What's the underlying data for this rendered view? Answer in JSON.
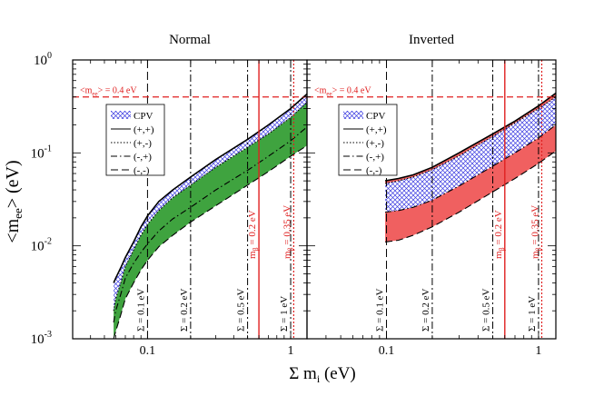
{
  "chart_data": [
    {
      "type": "line",
      "title": "Normal",
      "xlabel": "Σ m_i (eV)",
      "ylabel": "<m_ee> (eV)",
      "xscale": "log",
      "yscale": "log",
      "xlim": [
        0.03,
        1.3
      ],
      "ylim": [
        0.001,
        1
      ],
      "x_ticks": [
        "0.1",
        "1"
      ],
      "y_ticks": [
        "10^-3",
        "10^-2",
        "10^-1",
        "10^0"
      ],
      "legend": [
        "CPV",
        "(+,+)",
        "(+,-)",
        "(-,+)",
        "(-,-)"
      ],
      "legend_position": "upper-left",
      "hline": {
        "label": "<m_ee> = 0.4 eV",
        "y": 0.4
      },
      "vlines": [
        {
          "label": "Σ = 0.1 eV",
          "x": 0.1,
          "style": "dash"
        },
        {
          "label": "Σ = 0.2 eV",
          "x": 0.2,
          "style": "dashdot"
        },
        {
          "label": "Σ = 0.5 eV",
          "x": 0.5,
          "style": "dashdot"
        },
        {
          "label": "Σ = 1 eV",
          "x": 1.0,
          "style": "dashdot"
        }
      ],
      "mbeta_lines": [
        {
          "label": "m_β = 0.2 eV",
          "x": 0.6,
          "style": "solid"
        },
        {
          "label": "m_β = 0.35 eV",
          "x": 1.05,
          "style": "dotted"
        }
      ],
      "x": [
        0.058,
        0.06,
        0.065,
        0.07,
        0.08,
        0.09,
        0.1,
        0.12,
        0.15,
        0.2,
        0.3,
        0.5,
        0.7,
        1.0,
        1.3
      ],
      "series": [
        {
          "name": "(+,+)",
          "values": [
            0.004,
            0.0045,
            0.0058,
            0.0075,
            0.011,
            0.016,
            0.021,
            0.03,
            0.04,
            0.055,
            0.085,
            0.14,
            0.2,
            0.3,
            0.43
          ]
        },
        {
          "name": "(+,-)",
          "values": [
            0.002,
            0.0027,
            0.004,
            0.006,
            0.009,
            0.013,
            0.017,
            0.024,
            0.033,
            0.045,
            0.07,
            0.115,
            0.16,
            0.24,
            0.35
          ]
        },
        {
          "name": "(-,+)",
          "values": [
            0.0015,
            0.002,
            0.003,
            0.0045,
            0.0065,
            0.0085,
            0.0105,
            0.0145,
            0.0195,
            0.026,
            0.04,
            0.065,
            0.092,
            0.135,
            0.19
          ]
        },
        {
          "name": "(-,-)",
          "values": [
            0.001,
            0.0012,
            0.0018,
            0.0027,
            0.004,
            0.0055,
            0.007,
            0.0098,
            0.013,
            0.018,
            0.027,
            0.045,
            0.063,
            0.092,
            0.12
          ]
        }
      ],
      "cpv_band": {
        "lower": "(+,-)",
        "upper": "(+,+)"
      },
      "colored_band": {
        "lower": "(-,-)",
        "upper": "(+,-)",
        "color": "#3fa33f"
      }
    },
    {
      "type": "line",
      "title": "Inverted",
      "xlabel": "Σ m_i (eV)",
      "ylabel": "<m_ee> (eV)",
      "xscale": "log",
      "yscale": "log",
      "xlim": [
        0.03,
        1.3
      ],
      "ylim": [
        0.001,
        1
      ],
      "x_ticks": [
        "0.1",
        "1"
      ],
      "legend": [
        "CPV",
        "(+,+)",
        "(+,-)",
        "(-,+)",
        "(-,-)"
      ],
      "legend_position": "upper-left",
      "hline": {
        "label": "<m_ee> = 0.4 eV",
        "y": 0.4
      },
      "vlines": [
        {
          "label": "Σ = 0.1 eV",
          "x": 0.1,
          "style": "dash"
        },
        {
          "label": "Σ = 0.2 eV",
          "x": 0.2,
          "style": "dashdot"
        },
        {
          "label": "Σ = 0.5 eV",
          "x": 0.5,
          "style": "dashdot"
        },
        {
          "label": "Σ = 1 eV",
          "x": 1.0,
          "style": "dashdot"
        }
      ],
      "mbeta_lines": [
        {
          "label": "m_β = 0.2 eV",
          "x": 0.6,
          "style": "solid"
        },
        {
          "label": "m_β = 0.35 eV",
          "x": 1.05,
          "style": "dotted"
        }
      ],
      "x": [
        0.098,
        0.12,
        0.15,
        0.2,
        0.3,
        0.5,
        0.7,
        1.0,
        1.3
      ],
      "series": [
        {
          "name": "(+,+)",
          "values": [
            0.05,
            0.053,
            0.058,
            0.07,
            0.1,
            0.16,
            0.22,
            0.32,
            0.44
          ]
        },
        {
          "name": "(+,-)",
          "values": [
            0.047,
            0.05,
            0.055,
            0.066,
            0.093,
            0.15,
            0.21,
            0.3,
            0.4
          ]
        },
        {
          "name": "(-,+)",
          "values": [
            0.023,
            0.024,
            0.026,
            0.031,
            0.044,
            0.072,
            0.1,
            0.145,
            0.2
          ]
        },
        {
          "name": "(-,-)",
          "values": [
            0.011,
            0.0115,
            0.013,
            0.016,
            0.023,
            0.038,
            0.053,
            0.077,
            0.105
          ]
        }
      ],
      "cpv_band": {
        "lower": "(-,+)",
        "upper": "(+,-)"
      },
      "colored_band": [
        {
          "lower": "(+,-)",
          "upper": "(+,+)",
          "color": "#f06060"
        },
        {
          "lower": "(-,-)",
          "upper": "(-,+)",
          "color": "#f06060"
        }
      ]
    }
  ]
}
